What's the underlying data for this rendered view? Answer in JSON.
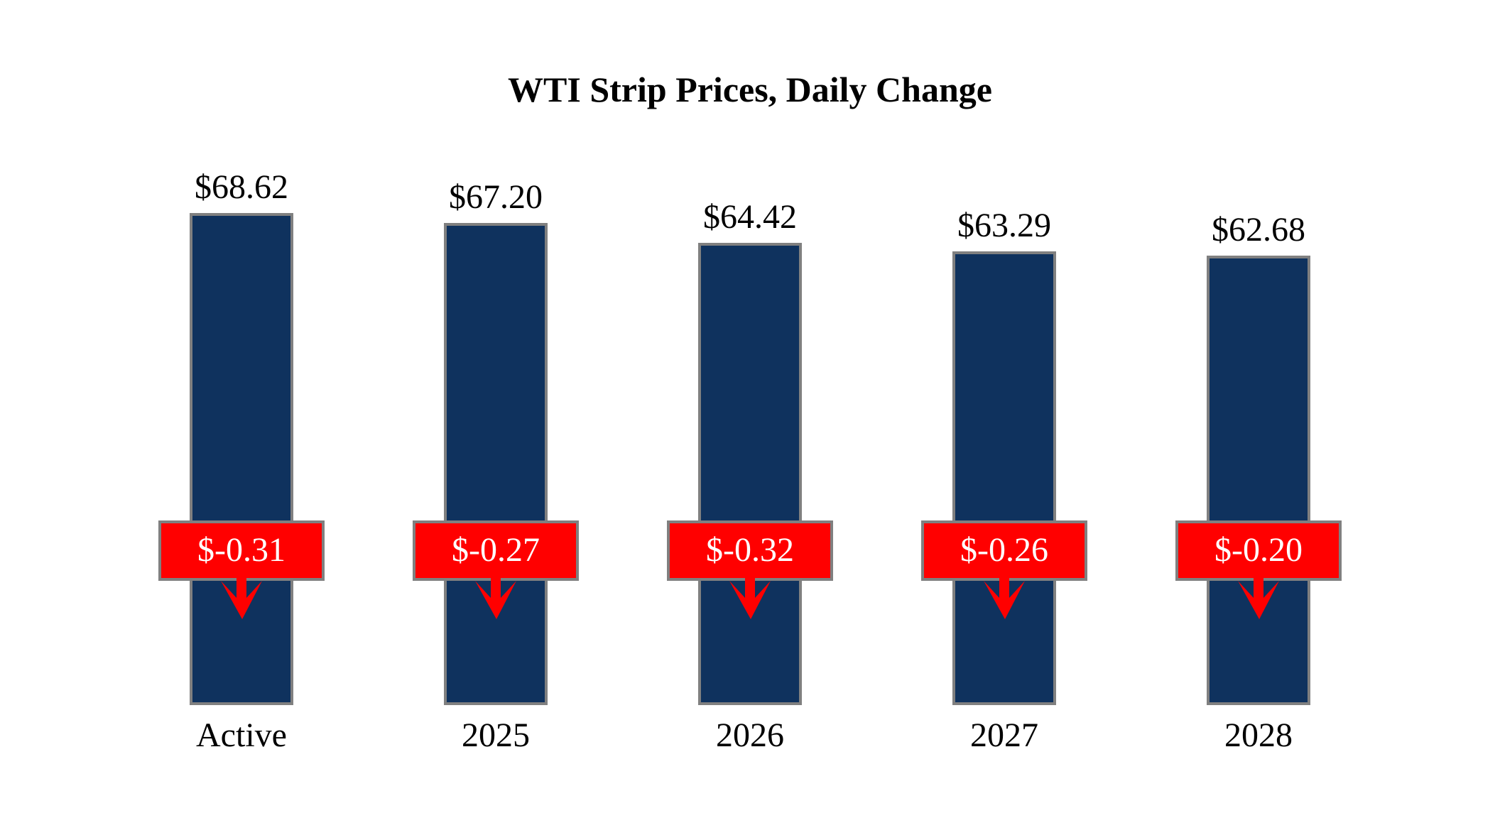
{
  "chart_data": {
    "type": "bar",
    "title": "WTI Strip Prices, Daily Change",
    "categories": [
      "Active",
      "2025",
      "2026",
      "2027",
      "2028"
    ],
    "series": [
      {
        "name": "WTI Strip Price",
        "values": [
          68.62,
          67.2,
          64.42,
          63.29,
          62.68
        ],
        "labels": [
          "$68.62",
          "$67.20",
          "$64.42",
          "$63.29",
          "$62.68"
        ]
      },
      {
        "name": "Daily Change",
        "values": [
          -0.31,
          -0.27,
          -0.32,
          -0.26,
          -0.2
        ],
        "labels": [
          "$-0.31",
          "$-0.27",
          "$-0.32",
          "$-0.26",
          "$-0.20"
        ]
      }
    ],
    "ylim": [
      0,
      70
    ],
    "grid": false,
    "legend_position": "none",
    "axes_visible": false,
    "change_direction": "down",
    "colors": {
      "background": "#FFFFFF",
      "bar_fill": "#0F325E",
      "bar_border": "#808080",
      "change_box_fill": "#FF0000",
      "change_box_border": "#808080",
      "change_text": "#FFFFFF",
      "label_text": "#000000",
      "arrow": "#FF0000"
    }
  }
}
